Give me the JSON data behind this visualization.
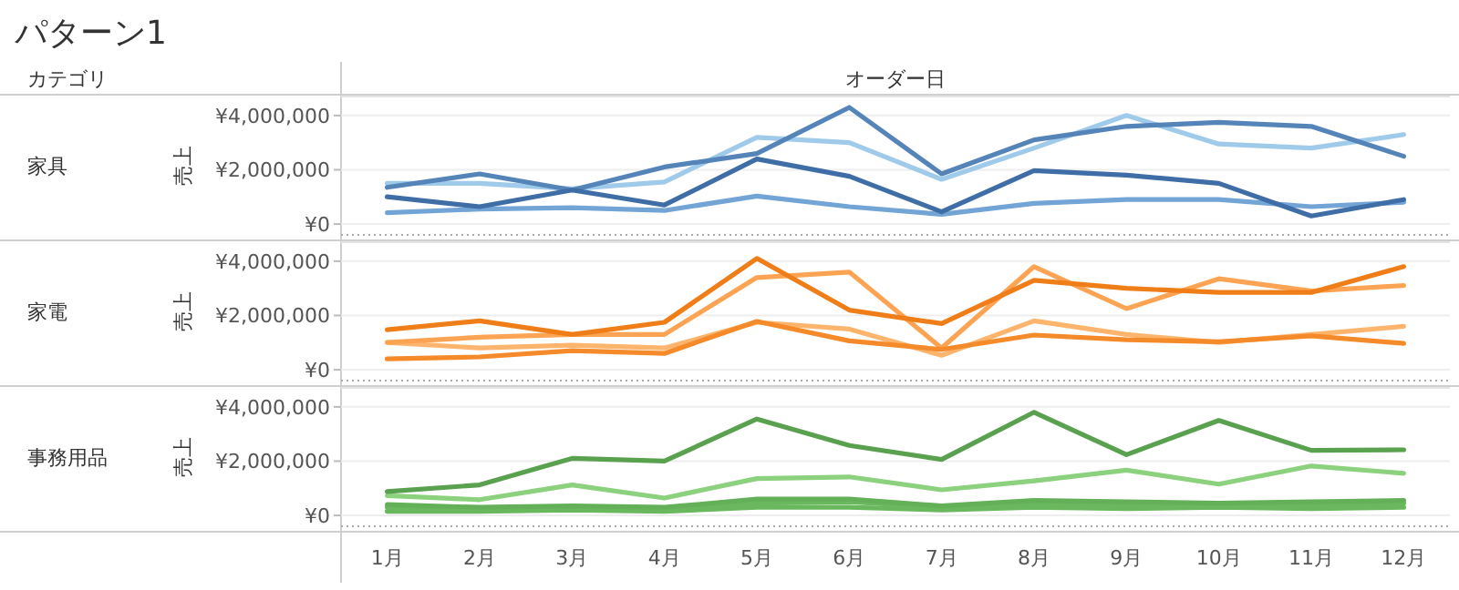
{
  "chart_data": [
    {
      "type": "line",
      "title": "パターン1",
      "xlabel": "オーダー日",
      "annotations": [
        "カテゴリ",
        "家具"
      ],
      "ylabel": "売上",
      "tick_labels": "y",
      "grid": "y",
      "categories": [
        null,
        null,
        null,
        null,
        null,
        null,
        null,
        null,
        null,
        null,
        null,
        null
      ],
      "ylim": [
        -400000,
        4700000
      ],
      "yticks": [
        {
          "value": 0,
          "label": "¥0"
        },
        {
          "value": 2000000,
          "label": "¥2,000,000"
        },
        {
          "value": 4000000,
          "label": "¥4,000,000"
        }
      ],
      "series": [
        {
          "color": "#9fcaea",
          "values": [
            1500000,
            1500000,
            1300000,
            1550000,
            3200000,
            3000000,
            1650000,
            2800000,
            4000000,
            2950000,
            2800000,
            3300000
          ]
        },
        {
          "color": "#73a4d6",
          "values": [
            420000,
            550000,
            600000,
            500000,
            1030000,
            640000,
            360000,
            760000,
            900000,
            900000,
            640000,
            800000
          ]
        },
        {
          "color": "#5584b9",
          "values": [
            1350000,
            1850000,
            1250000,
            2100000,
            2600000,
            4300000,
            1850000,
            3100000,
            3600000,
            3750000,
            3600000,
            2500000
          ]
        },
        {
          "color": "#3f6ea6",
          "values": [
            1000000,
            640000,
            1250000,
            700000,
            2400000,
            1760000,
            450000,
            1970000,
            1800000,
            1500000,
            300000,
            900000
          ]
        }
      ]
    },
    {
      "type": "line",
      "annotations": [
        "家電"
      ],
      "ylabel": "売上",
      "tick_labels": "y",
      "grid": "y",
      "categories": [
        null,
        null,
        null,
        null,
        null,
        null,
        null,
        null,
        null,
        null,
        null,
        null
      ],
      "ylim": [
        -400000,
        4700000
      ],
      "yticks": [
        {
          "value": 0,
          "label": "¥0"
        },
        {
          "value": 2000000,
          "label": "¥2,000,000"
        },
        {
          "value": 4000000,
          "label": "¥4,000,000"
        }
      ],
      "series": [
        {
          "color": "#fdb56e",
          "values": [
            1000000,
            800000,
            900000,
            800000,
            1750000,
            1500000,
            530000,
            1800000,
            1300000,
            1000000,
            1300000,
            1600000
          ]
        },
        {
          "color": "#fca453",
          "values": [
            1000000,
            1200000,
            1300000,
            1300000,
            3400000,
            3600000,
            800000,
            3800000,
            2250000,
            3350000,
            2900000,
            3100000
          ]
        },
        {
          "color": "#f58a2a",
          "values": [
            400000,
            470000,
            700000,
            600000,
            1780000,
            1060000,
            750000,
            1280000,
            1100000,
            1030000,
            1250000,
            970000
          ]
        },
        {
          "color": "#ef7d18",
          "values": [
            1470000,
            1800000,
            1300000,
            1750000,
            4100000,
            2200000,
            1700000,
            3300000,
            3000000,
            2850000,
            2850000,
            3800000
          ]
        }
      ]
    },
    {
      "type": "line",
      "annotations": [
        "事務用品"
      ],
      "ylabel": "売上",
      "grid": "y",
      "categories": [
        "1月",
        "2月",
        "3月",
        "4月",
        "5月",
        "6月",
        "7月",
        "8月",
        "9月",
        "10月",
        "11月",
        "12月"
      ],
      "ylim": [
        -400000,
        4700000
      ],
      "yticks": [
        {
          "value": 0,
          "label": "¥0"
        },
        {
          "value": 2000000,
          "label": "¥2,000,000"
        },
        {
          "value": 4000000,
          "label": "¥4,000,000"
        }
      ],
      "series": [
        {
          "color": "#6ab85e",
          "values": [
            150000,
            150000,
            200000,
            150000,
            300000,
            300000,
            200000,
            300000,
            250000,
            300000,
            250000,
            300000
          ]
        },
        {
          "color": "#6ab85e",
          "values": [
            300000,
            250000,
            300000,
            250000,
            450000,
            500000,
            300000,
            450000,
            400000,
            400000,
            400000,
            450000
          ]
        },
        {
          "color": "#63b058",
          "values": [
            400000,
            300000,
            350000,
            300000,
            600000,
            600000,
            350000,
            550000,
            500000,
            450000,
            500000,
            550000
          ]
        },
        {
          "color": "#8cd17d",
          "values": [
            730000,
            580000,
            1120000,
            640000,
            1360000,
            1420000,
            940000,
            1270000,
            1670000,
            1150000,
            1820000,
            1550000
          ]
        },
        {
          "color": "#59a14f",
          "values": [
            880000,
            1120000,
            2100000,
            2000000,
            3550000,
            2580000,
            2060000,
            3800000,
            2240000,
            3500000,
            2400000,
            2420000
          ]
        }
      ]
    }
  ]
}
